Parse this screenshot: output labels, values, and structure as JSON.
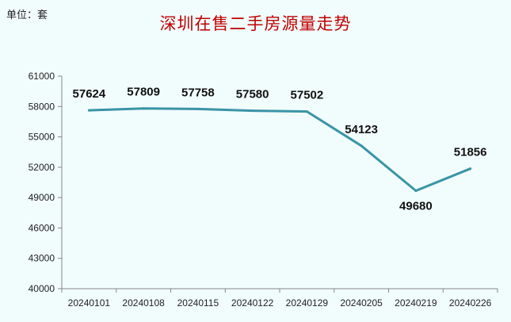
{
  "unit_label": "单位：套",
  "title": "深圳在售二手房源量走势",
  "colors": {
    "line": "#3a94a6",
    "title": "#c00000",
    "background": "#f1fcfc",
    "axis": "#888888"
  },
  "chart_data": {
    "type": "line",
    "title": "深圳在售二手房源量走势",
    "categories": [
      "20240101",
      "20240108",
      "20240115",
      "20240122",
      "20240129",
      "20240205",
      "20240219",
      "20240226"
    ],
    "series": [
      {
        "values": [
          57624,
          57809,
          57758,
          57580,
          57502,
          54123,
          49680,
          51856
        ]
      }
    ],
    "data_labels": [
      "57624",
      "57809",
      "57758",
      "57580",
      "57502",
      "54123",
      "49680",
      "51856"
    ],
    "y_ticks": [
      "40000",
      "43000",
      "46000",
      "49000",
      "52000",
      "55000",
      "58000",
      "61000"
    ],
    "ylim": [
      40000,
      61000
    ],
    "grid": false,
    "legend": "none",
    "ylabel": "",
    "xlabel": ""
  }
}
